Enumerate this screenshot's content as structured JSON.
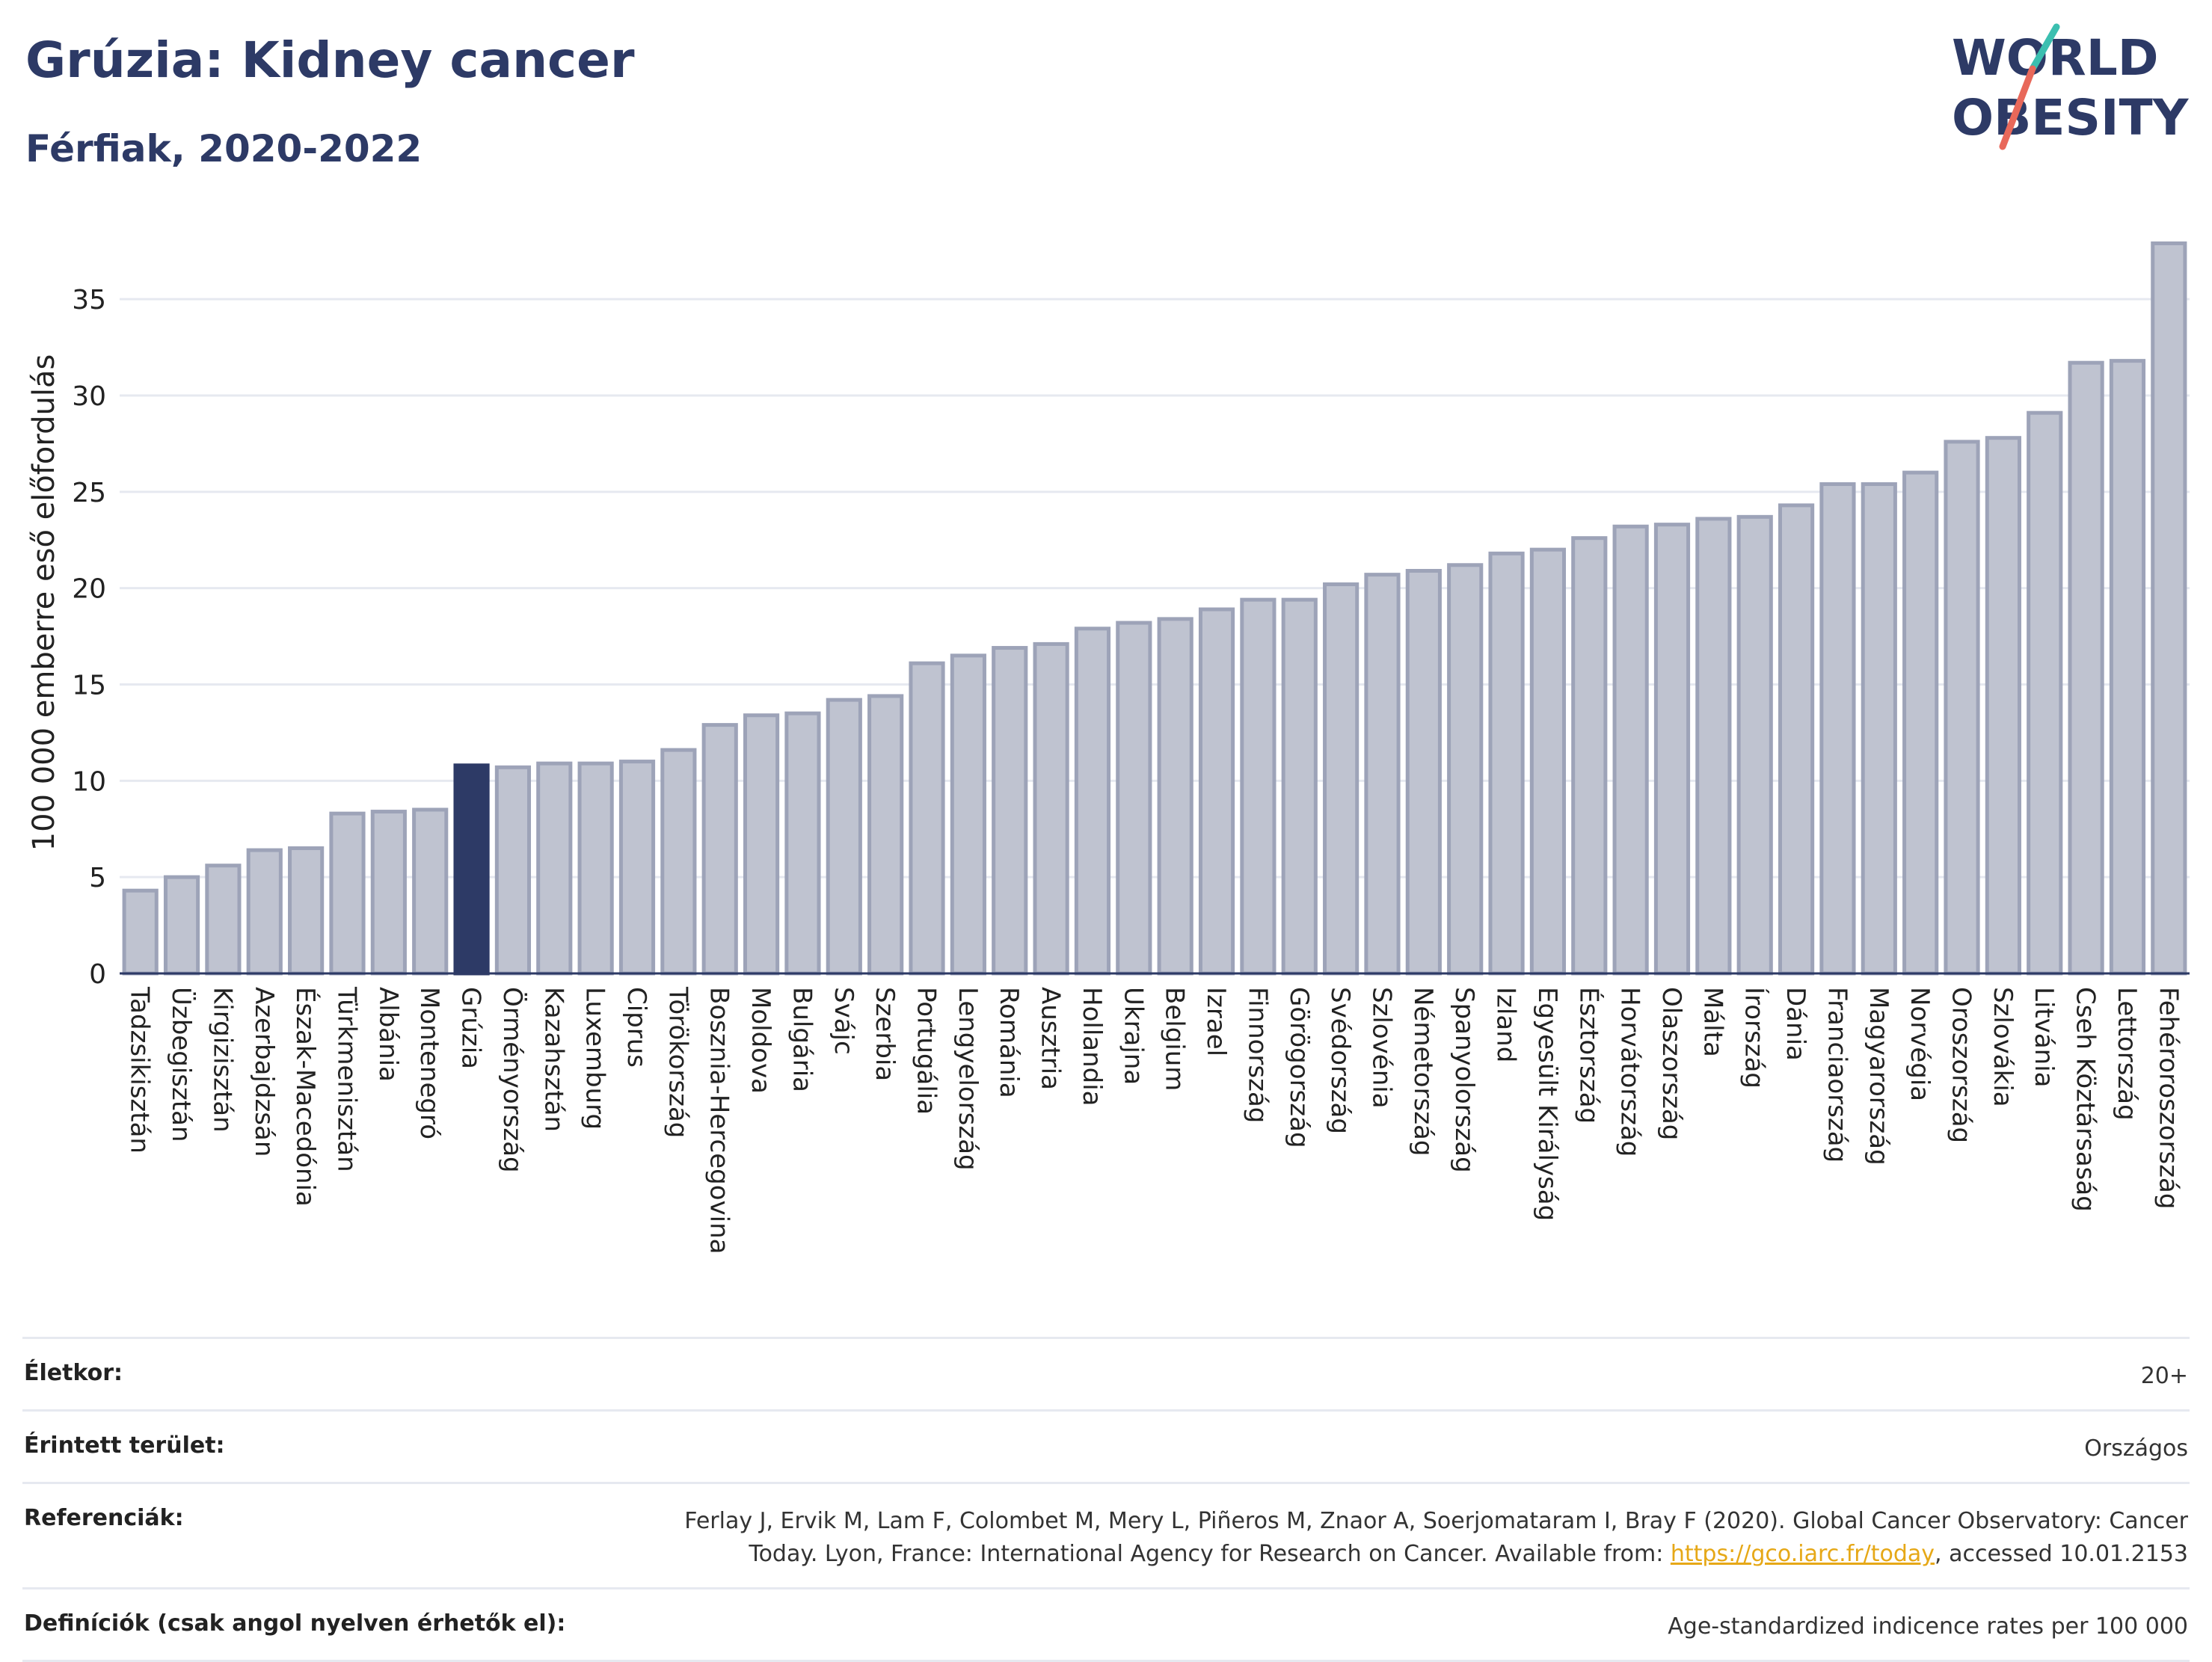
{
  "header": {
    "title": "Grúzia: Kidney cancer",
    "subtitle": "Férfiak, 2020-2022"
  },
  "logo": {
    "line1": "WORLD",
    "line2": "OBESITY",
    "colors": {
      "text": "#2d3a66",
      "slash_teal": "#3bbfb0",
      "slash_coral": "#e8685a"
    }
  },
  "chart_data": {
    "type": "bar",
    "ylabel": "100 000 emberre eső előfordulás",
    "ylim": [
      0,
      38.5
    ],
    "yticks": [
      0,
      5,
      10,
      15,
      20,
      25,
      30,
      35
    ],
    "grid": true,
    "highlight": "Grúzia",
    "colors": {
      "bar": "#bfc3d0",
      "bar_edge": "#9da3b8",
      "highlight": "#2d3a66",
      "grid": "#e6e9f0"
    },
    "categories": [
      "Tadzsikisztán",
      "Üzbegisztán",
      "Kirgizisztán",
      "Azerbajdzsán",
      "Észak-Macedónia",
      "Türkmenisztán",
      "Albánia",
      "Montenegró",
      "Grúzia",
      "Örményország",
      "Kazahsztán",
      "Luxemburg",
      "Ciprus",
      "Törökország",
      "Bosznia-Hercegovina",
      "Moldova",
      "Bulgária",
      "Svájc",
      "Szerbia",
      "Portugália",
      "Lengyelország",
      "Románia",
      "Ausztria",
      "Hollandia",
      "Ukrajna",
      "Belgium",
      "Izrael",
      "Finnország",
      "Görögország",
      "Svédország",
      "Szlovénia",
      "Németország",
      "Spanyolország",
      "Izland",
      "Egyesült Királyság",
      "Észtország",
      "Horvátország",
      "Olaszország",
      "Málta",
      "Írország",
      "Dánia",
      "Franciaország",
      "Magyarország",
      "Norvégia",
      "Oroszország",
      "Szlovákia",
      "Litvánia",
      "Cseh Köztársaság",
      "Lettország",
      "Fehéroroszország"
    ],
    "values": [
      4.3,
      5.0,
      5.6,
      6.4,
      6.5,
      8.3,
      8.4,
      8.5,
      10.8,
      10.7,
      10.9,
      10.9,
      11.0,
      11.6,
      12.9,
      13.4,
      13.5,
      14.2,
      14.4,
      16.1,
      16.5,
      16.9,
      17.1,
      17.9,
      18.2,
      18.4,
      18.9,
      19.4,
      19.4,
      20.2,
      20.7,
      20.9,
      21.2,
      21.8,
      22.0,
      22.6,
      23.2,
      23.3,
      23.6,
      23.7,
      24.3,
      25.4,
      25.4,
      26.0,
      27.6,
      27.8,
      29.1,
      31.7,
      31.8,
      37.9
    ]
  },
  "meta": {
    "age_label": "Életkor:",
    "age_value": "20+",
    "area_label": "Érintett terület:",
    "area_value": "Országos",
    "ref_label": "Referenciák:",
    "ref_line1": "Ferlay J, Ervik M, Lam F, Colombet M, Mery L, Piñeros M, Znaor A, Soerjomataram I, Bray F (2020). Global Cancer Observatory: Cancer",
    "ref_line2_pre": "Today. Lyon, France: International Agency for Research on Cancer. Available from: ",
    "ref_link": "https://gco.iarc.fr/today",
    "ref_line2_post": ", accessed 10.01.2153",
    "def_label": "Definíciók (csak angol nyelven érhetők el):",
    "def_value": "Age-standardized indicence rates per 100 000"
  }
}
